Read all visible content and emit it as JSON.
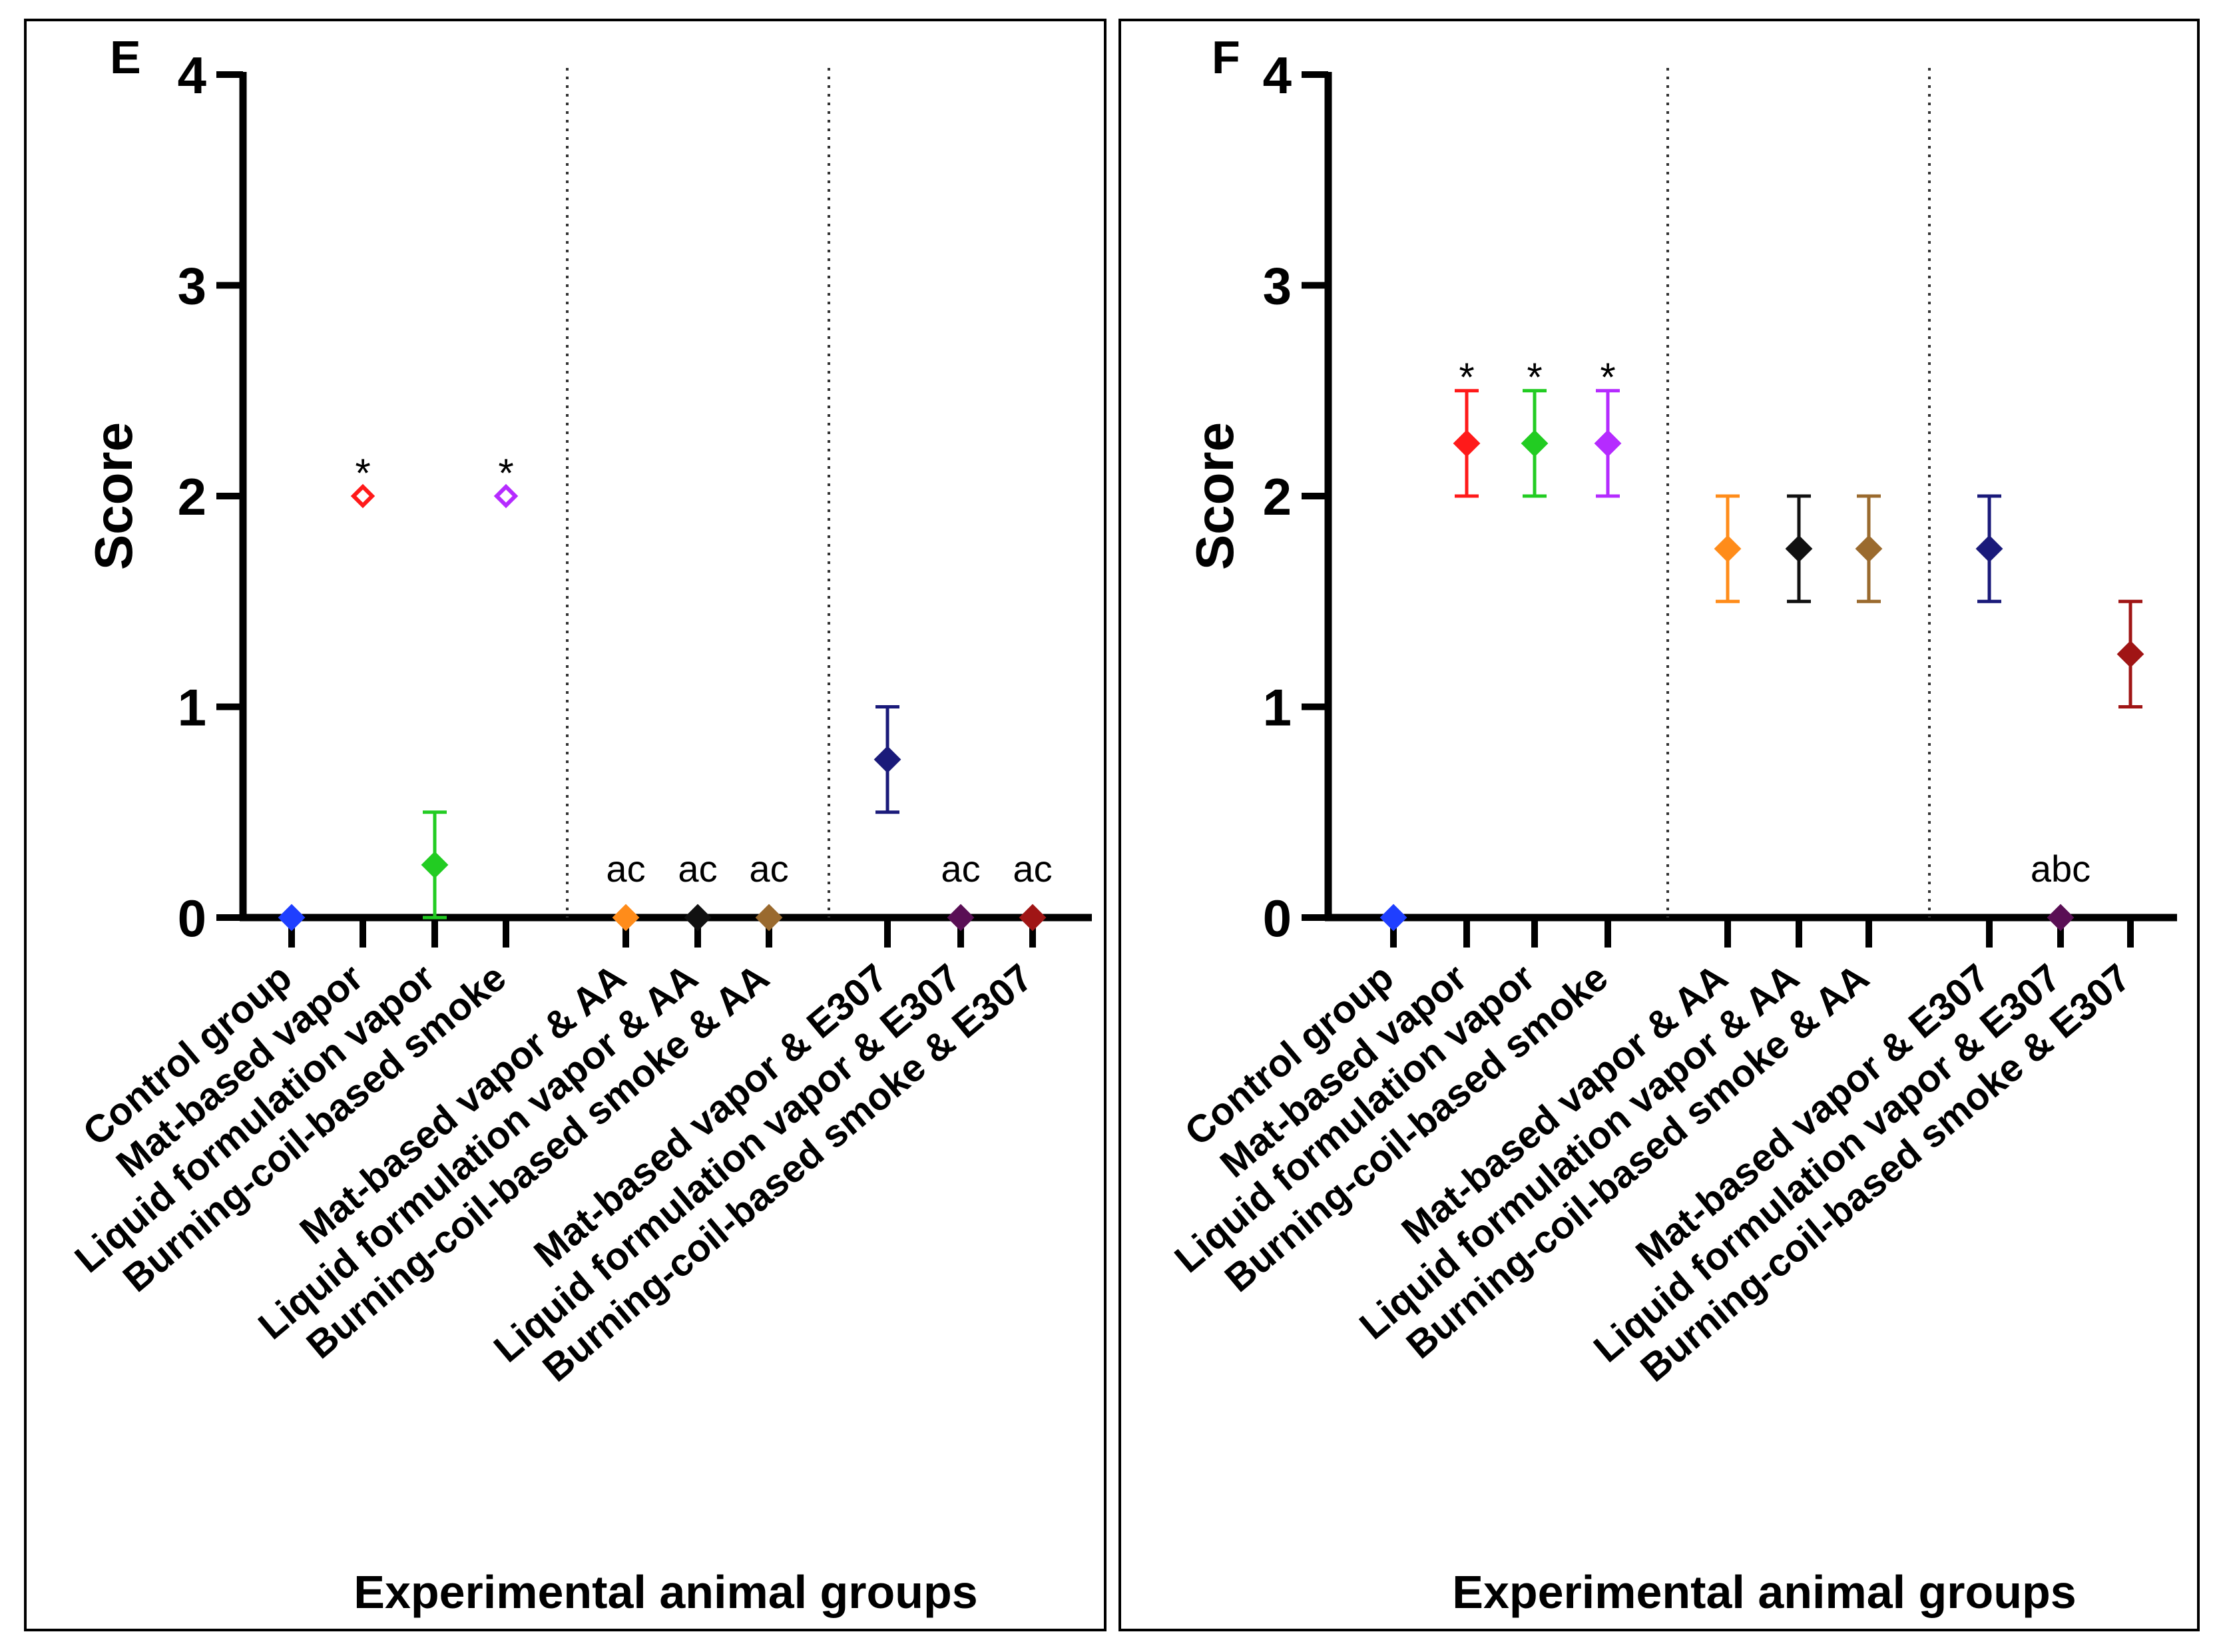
{
  "chart_data": [
    {
      "panel": "E",
      "type": "scatter",
      "ylabel": "Score",
      "xlabel": "Experimental animal groups",
      "ylim": [
        0,
        4
      ],
      "yticks": [
        "0",
        "1",
        "2",
        "3",
        "4"
      ],
      "categories": [
        "Control group",
        "Mat-based vapor",
        "Liquid formulation vapor",
        "Burning-coil-based smoke",
        "Mat-based vapor & AA",
        "Liquid formulation vapor & AA",
        "Burning-coil-based smoke & AA",
        "Mat-based vapor & E307",
        "Liquid formulation vapor & E307",
        "Burning-coil-based smoke & E307"
      ],
      "colors": [
        "#1f3fff",
        "#ff1a1a",
        "#22cc22",
        "#b52bff",
        "#ff8c1a",
        "#111111",
        "#9a6a2e",
        "#1a1a7a",
        "#5a0f55",
        "#a01515"
      ],
      "values": [
        0,
        2,
        0.25,
        2,
        0,
        0,
        0,
        0.75,
        0,
        0
      ],
      "errors": [
        0,
        0,
        0.25,
        0,
        0,
        0,
        0,
        0.25,
        0,
        0
      ],
      "hollow": [
        false,
        true,
        false,
        true,
        false,
        false,
        false,
        false,
        false,
        false
      ],
      "annotations": [
        "",
        "*",
        "",
        "*",
        "ac",
        "ac",
        "ac",
        "",
        "ac",
        "ac"
      ]
    },
    {
      "panel": "F",
      "type": "scatter",
      "ylabel": "Score",
      "xlabel": "Experimental animal groups",
      "ylim": [
        0,
        4
      ],
      "yticks": [
        "0",
        "1",
        "2",
        "3",
        "4"
      ],
      "categories": [
        "Control group",
        "Mat-based vapor",
        "Liquid formulation vapor",
        "Burning-coil-based smoke",
        "Mat-based vapor & AA",
        "Liquid formulation vapor & AA",
        "Burning-coil-based smoke & AA",
        "Mat-based vapor & E307",
        "Liquid formulation vapor & E307",
        "Burning-coil-based smoke & E307"
      ],
      "colors": [
        "#1f3fff",
        "#ff1a1a",
        "#22cc22",
        "#b52bff",
        "#ff8c1a",
        "#111111",
        "#9a6a2e",
        "#1a1a7a",
        "#5a0f55",
        "#a01515"
      ],
      "values": [
        0,
        2.25,
        2.25,
        2.25,
        1.75,
        1.75,
        1.75,
        1.75,
        0,
        1.25
      ],
      "errors": [
        0,
        0.25,
        0.25,
        0.25,
        0.25,
        0.25,
        0.25,
        0.25,
        0,
        0.25
      ],
      "hollow": [
        false,
        false,
        false,
        false,
        false,
        false,
        false,
        false,
        false,
        false
      ],
      "annotations": [
        "",
        "*",
        "*",
        "*",
        "",
        "",
        "",
        "",
        "abc",
        ""
      ]
    }
  ]
}
